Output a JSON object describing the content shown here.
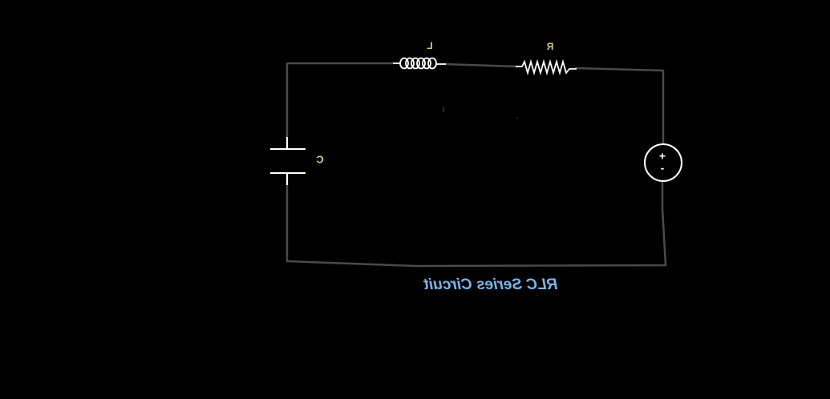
{
  "diagram": {
    "caption": "RLC Series Circuit",
    "mirrored": true,
    "components": {
      "inductor": {
        "label": "L"
      },
      "resistor": {
        "label": "R"
      },
      "capacitor": {
        "label": "C"
      },
      "source": {
        "plus": "+",
        "minus": "-"
      }
    },
    "colors": {
      "background": "#000000",
      "wire": "#4a4a4a",
      "component": "#ffffff",
      "label": "#d8cf86",
      "caption": "#79b6ea"
    }
  }
}
